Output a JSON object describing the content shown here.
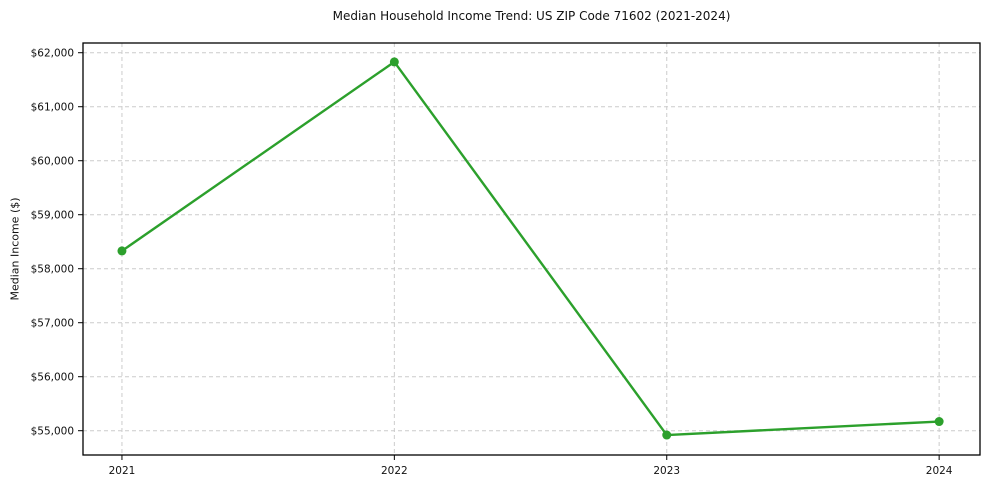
{
  "chart_data": {
    "type": "line",
    "title": "Median Household Income Trend: US ZIP Code 71602 (2021-2024)",
    "xlabel": "",
    "ylabel": "Median Income ($)",
    "x": [
      2021,
      2022,
      2023,
      2024
    ],
    "categories": [
      "2021",
      "2022",
      "2023",
      "2024"
    ],
    "series": [
      {
        "name": "Median household income",
        "values": [
          58330,
          61830,
          54920,
          55170
        ]
      }
    ],
    "yticks": [
      55000,
      56000,
      57000,
      58000,
      59000,
      60000,
      61000,
      62000
    ],
    "ytick_labels": [
      "$55,000",
      "$56,000",
      "$57,000",
      "$58,000",
      "$59,000",
      "$60,000",
      "$61,000",
      "$62,000"
    ],
    "xlim": [
      2020.857,
      2024.15
    ],
    "ylim": [
      54550,
      62180
    ],
    "grid": "dashed both axes",
    "legend": "none",
    "line_color": "#2ca02c",
    "marker": "circle",
    "marker_radius": 4.5,
    "grid_color": "#cccccc",
    "spine_color": "#000000"
  }
}
